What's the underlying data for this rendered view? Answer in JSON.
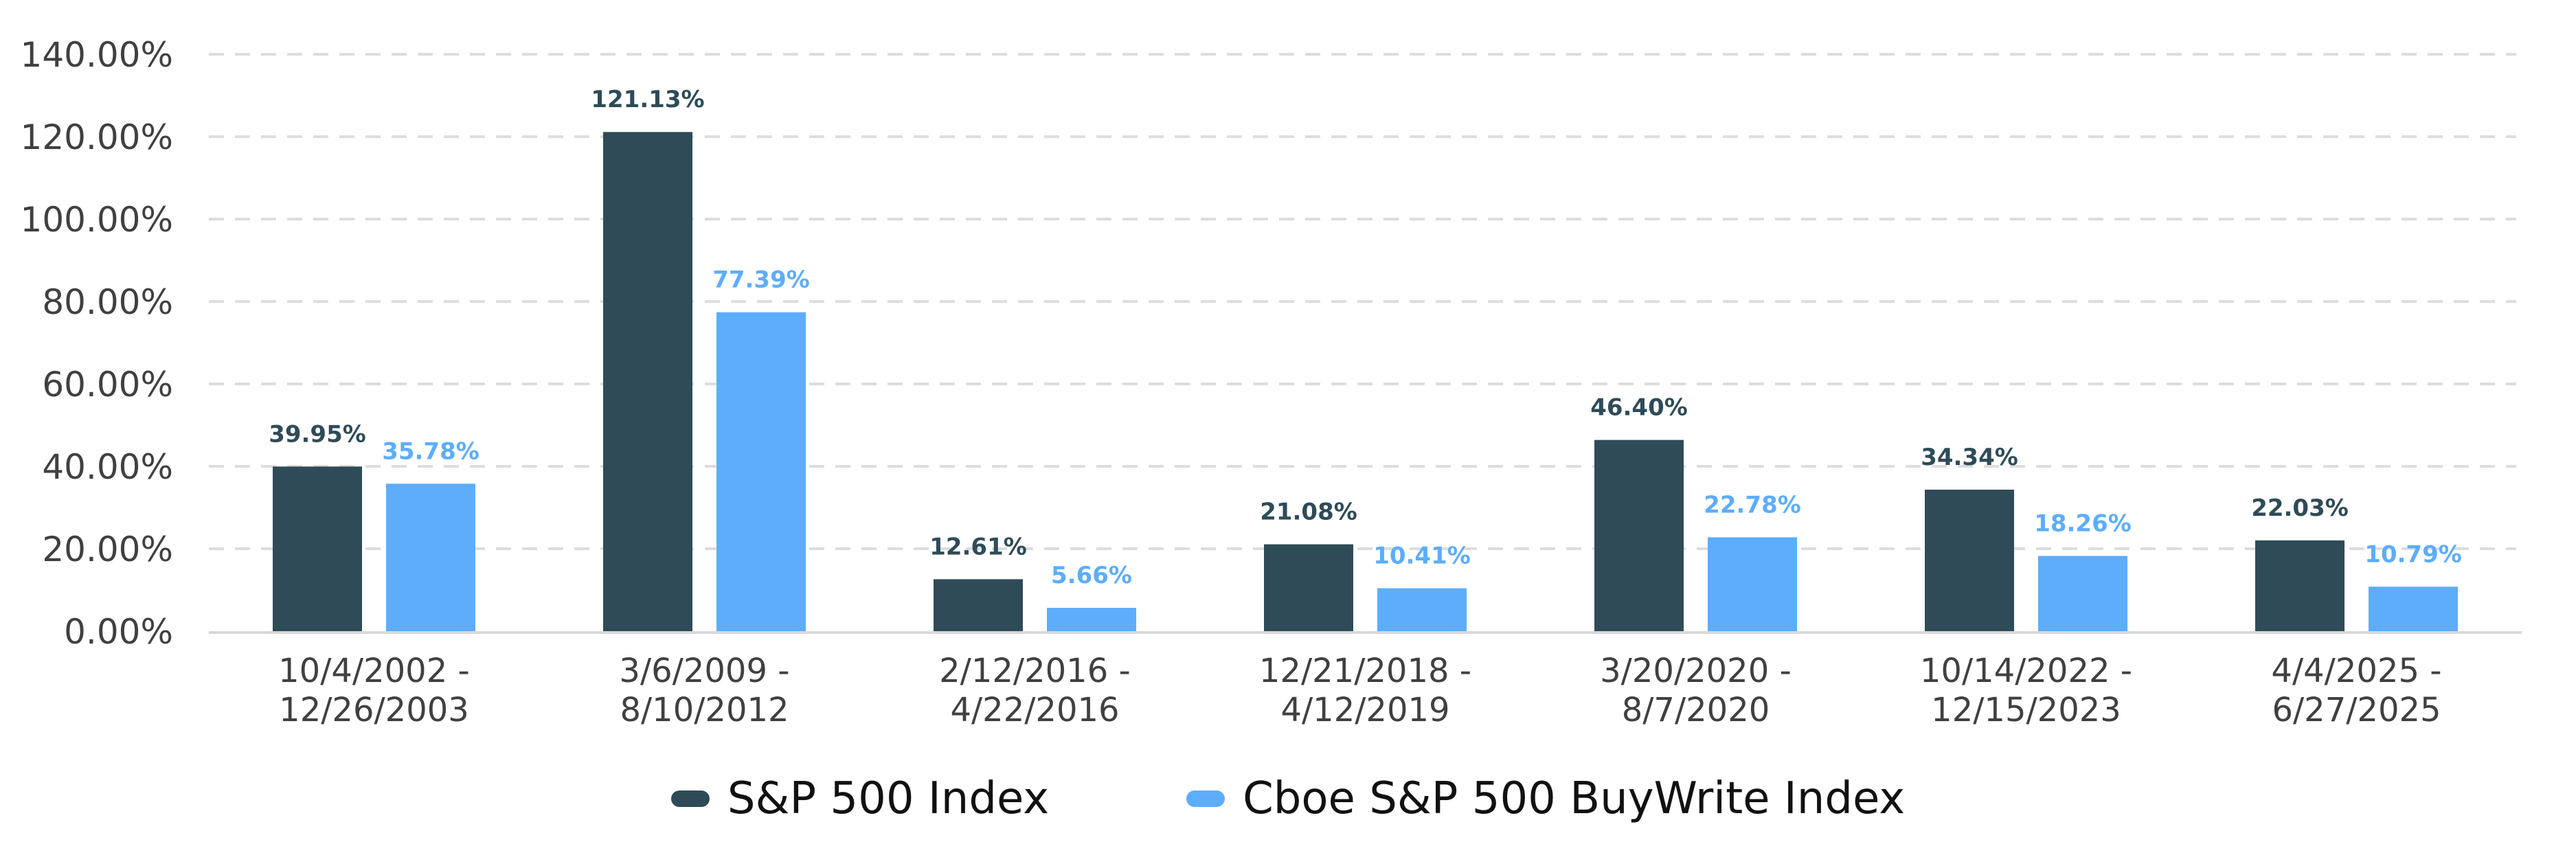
{
  "colors": {
    "series_dark": "#2F4B57",
    "series_light": "#5DADFB",
    "axis_text": "#404040",
    "grid": "#DDDDDD",
    "baseline": "#D9D9D9"
  },
  "legend": {
    "items": [
      {
        "label": "S&P 500 Index",
        "color": "#2F4B57"
      },
      {
        "label": "Cboe S&P 500 BuyWrite Index",
        "color": "#5DADFB"
      }
    ]
  },
  "chart_data": {
    "type": "bar",
    "title": "",
    "xlabel": "",
    "ylabel": "",
    "ylim": [
      0,
      140
    ],
    "y_ticks": [
      "0.00%",
      "20.00%",
      "40.00%",
      "60.00%",
      "80.00%",
      "100.00%",
      "120.00%",
      "140.00%"
    ],
    "y_tick_values": [
      0,
      20,
      40,
      60,
      80,
      100,
      120,
      140
    ],
    "grid": true,
    "legend_position": "bottom",
    "categories": [
      [
        "10/4/2002 -",
        "12/26/2003"
      ],
      [
        "3/6/2009 -",
        "8/10/2012"
      ],
      [
        "2/12/2016 -",
        "4/22/2016"
      ],
      [
        "12/21/2018 -",
        "4/12/2019"
      ],
      [
        "3/20/2020 -",
        "8/7/2020"
      ],
      [
        "10/14/2022 -",
        "12/15/2023"
      ],
      [
        "4/4/2025 -",
        "6/27/2025"
      ]
    ],
    "series": [
      {
        "name": "S&P 500 Index",
        "color": "#2F4B57",
        "values": [
          39.95,
          121.13,
          12.61,
          21.08,
          46.4,
          34.34,
          22.03
        ],
        "labels": [
          "39.95%",
          "121.13%",
          "12.61%",
          "21.08%",
          "46.40%",
          "34.34%",
          "22.03%"
        ]
      },
      {
        "name": "Cboe S&P 500 BuyWrite Index",
        "color": "#5DADFB",
        "values": [
          35.78,
          77.39,
          5.66,
          10.41,
          22.78,
          18.26,
          10.79
        ],
        "labels": [
          "35.78%",
          "77.39%",
          "5.66%",
          "10.41%",
          "22.78%",
          "18.26%",
          "10.79%"
        ]
      }
    ]
  }
}
